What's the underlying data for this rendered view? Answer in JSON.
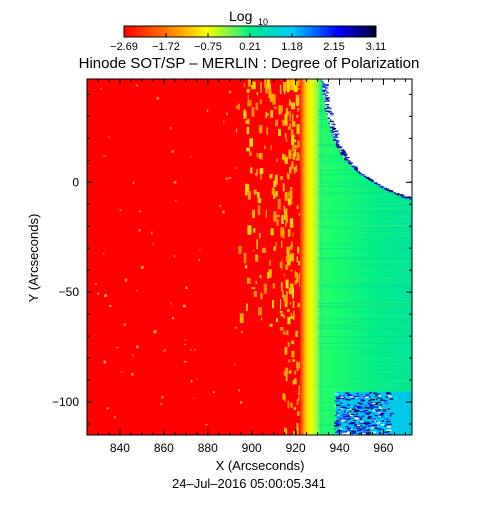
{
  "colorbar": {
    "label": "Log",
    "label_subscript": "10",
    "ticks": [
      "−2.69",
      "−1.72",
      "−0.75",
      "0.21",
      "1.18",
      "2.15",
      "3.11"
    ],
    "colors": [
      "#ff0000",
      "#ff7800",
      "#ffff00",
      "#00ee88",
      "#00c8ff",
      "#0000ff",
      "#000030"
    ]
  },
  "title": "Hinode SOT/SP – MERLIN : Degree of Polarization",
  "footer": "24–Jul–2016 05:00:05.341",
  "chart_data": {
    "type": "heatmap",
    "title": "Hinode SOT/SP – MERLIN : Degree of Polarization",
    "xlabel": "X (Arcseconds)",
    "ylabel": "Y (Arcseconds)",
    "xlim": [
      825,
      973
    ],
    "ylim": [
      -115,
      47
    ],
    "xticks": [
      "840",
      "860",
      "880",
      "900",
      "920",
      "940",
      "960"
    ],
    "yticks": [
      "0",
      "−50",
      "−100"
    ],
    "xtick_values": [
      840,
      860,
      880,
      900,
      920,
      940,
      960
    ],
    "ytick_values": [
      0,
      -50,
      -100
    ],
    "colorbar_range": [
      -2.69,
      3.11
    ],
    "regions": [
      {
        "name": "disk",
        "x": [
          825,
          924
        ],
        "color": "#ff0000"
      },
      {
        "name": "active-region",
        "x": [
          890,
          918
        ],
        "y": [
          -60,
          47
        ],
        "color": "#ffc800"
      },
      {
        "name": "limb",
        "x": [
          920,
          927
        ],
        "color": "#ffff00"
      },
      {
        "name": "off-limb",
        "x": [
          927,
          973
        ],
        "color": "#00ee88"
      },
      {
        "name": "no-data-top",
        "x": [
          936,
          973
        ],
        "y": [
          10,
          47
        ],
        "color": "#ffffff"
      },
      {
        "name": "noise-bottom",
        "x": [
          936,
          965
        ],
        "y": [
          -115,
          -95
        ],
        "color": "#0000c8"
      }
    ]
  }
}
